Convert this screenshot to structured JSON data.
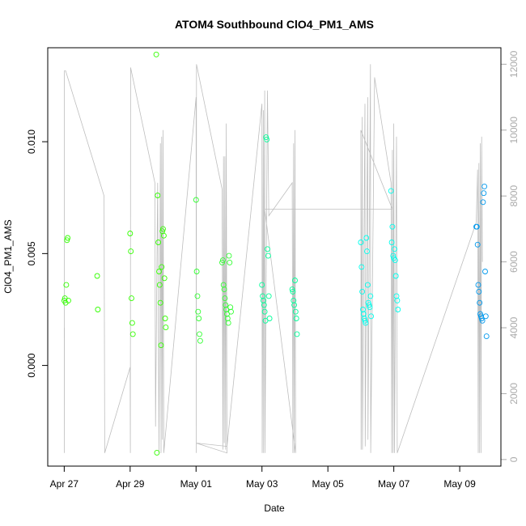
{
  "chart_data": {
    "type": "scatter",
    "title": "ATOM4 Southbound ClO4_PM1_AMS",
    "xlabel": "Date",
    "ylabel": "ClO4_PM1_AMS",
    "xlim": [
      "2018-04-26T12:00",
      "2018-05-10T06:00"
    ],
    "ylim": [
      -0.0045,
      0.0142
    ],
    "y2lim": [
      -200,
      12500
    ],
    "x_ticks": [
      {
        "date": "2018-04-27",
        "label": "Apr 27"
      },
      {
        "date": "2018-04-29",
        "label": "Apr 29"
      },
      {
        "date": "2018-05-01",
        "label": "May 01"
      },
      {
        "date": "2018-05-03",
        "label": "May 03"
      },
      {
        "date": "2018-05-05",
        "label": "May 05"
      },
      {
        "date": "2018-05-07",
        "label": "May 07"
      },
      {
        "date": "2018-05-09",
        "label": "May 09"
      }
    ],
    "y_ticks": [
      {
        "value": 0.0,
        "label": "0.000"
      },
      {
        "value": 0.005,
        "label": "0.005"
      },
      {
        "value": 0.01,
        "label": "0.010"
      }
    ],
    "y2_ticks": [
      {
        "value": 0,
        "label": "0"
      },
      {
        "value": 2000,
        "label": "2000"
      },
      {
        "value": 4000,
        "label": "4000"
      },
      {
        "value": 6000,
        "label": "6000"
      },
      {
        "value": 8000,
        "label": "8000"
      },
      {
        "value": 10000,
        "label": "10000"
      },
      {
        "value": 12000,
        "label": "12000"
      }
    ],
    "grid": false,
    "legend": "none",
    "colors": {
      "altitude_line": "#bebebe",
      "right_axis": "#aaaaaa",
      "point_ramp": [
        "#33ff00",
        "#00ff66",
        "#00ffcc",
        "#00ccff",
        "#0066ff"
      ]
    },
    "altitude_series": {
      "name": "",
      "axis": "right",
      "points": [
        [
          "2018-04-27T00:00",
          4000
        ],
        [
          "2018-04-27T00:05",
          200
        ],
        [
          "2018-04-27T00:10",
          11800
        ],
        [
          "2018-04-27T01:00",
          11800
        ],
        [
          "2018-04-28T05:00",
          8000
        ],
        [
          "2018-04-28T05:30",
          200
        ],
        [
          "2018-04-29T00:00",
          2800
        ],
        [
          "2018-04-29T00:10",
          200
        ],
        [
          "2018-04-29T00:20",
          11900
        ],
        [
          "2018-04-29T18:00",
          8400
        ],
        [
          "2018-04-29T18:30",
          1000
        ],
        [
          "2018-04-29T20:00",
          8400
        ],
        [
          "2018-04-29T21:00",
          200
        ],
        [
          "2018-04-29T22:00",
          9600
        ],
        [
          "2018-04-29T22:30",
          200
        ],
        [
          "2018-04-29T23:00",
          9800
        ],
        [
          "2018-04-29T23:30",
          600
        ],
        [
          "2018-04-30T00:00",
          10000
        ],
        [
          "2018-04-30T00:30",
          200
        ],
        [
          "2018-05-01T00:00",
          11000
        ],
        [
          "2018-05-01T00:10",
          200
        ],
        [
          "2018-05-01T00:20",
          12000
        ],
        [
          "2018-05-01T19:00",
          8200
        ],
        [
          "2018-05-01T19:30",
          300
        ],
        [
          "2018-05-01T20:00",
          9200
        ],
        [
          "2018-05-01T20:30",
          500
        ],
        [
          "2018-05-01T21:00",
          9200
        ],
        [
          "2018-05-01T21:30",
          300
        ],
        [
          "2018-05-01T22:00",
          10200
        ],
        [
          "2018-05-01T22:30",
          200
        ],
        [
          "2018-05-01T00:00",
          500
        ],
        [
          "2018-05-01T22:30",
          400
        ],
        [
          "2018-05-03T00:00",
          10800
        ],
        [
          "2018-05-03T00:10",
          200
        ],
        [
          "2018-05-03T01:00",
          10600
        ],
        [
          "2018-05-03T01:10",
          200
        ],
        [
          "2018-05-03T02:00",
          11200
        ],
        [
          "2018-05-03T02:10",
          200
        ],
        [
          "2018-05-03T04:00",
          11200
        ],
        [
          "2018-05-03T05:00",
          7400
        ],
        [
          "2018-05-03T22:00",
          8400
        ],
        [
          "2018-05-03T22:30",
          200
        ],
        [
          "2018-05-03T23:00",
          9600
        ],
        [
          "2018-05-03T23:30",
          200
        ],
        [
          "2018-05-04T00:00",
          10000
        ],
        [
          "2018-05-04T00:30",
          200
        ],
        [
          "2018-05-03T02:00",
          7600
        ],
        [
          "2018-05-06T23:00",
          7600
        ],
        [
          "2018-05-06T00:00",
          10000
        ],
        [
          "2018-05-06T00:10",
          300
        ],
        [
          "2018-05-06T01:00",
          10400
        ],
        [
          "2018-05-06T01:10",
          300
        ],
        [
          "2018-05-06T03:00",
          10800
        ],
        [
          "2018-05-06T03:10",
          400
        ],
        [
          "2018-05-06T05:00",
          11000
        ],
        [
          "2018-05-06T05:10",
          600
        ],
        [
          "2018-05-06T07:00",
          12000
        ],
        [
          "2018-05-06T07:10",
          200
        ],
        [
          "2018-05-06T10:00",
          11600
        ],
        [
          "2018-05-06T22:00",
          8400
        ],
        [
          "2018-05-06T22:30",
          200
        ],
        [
          "2018-05-06T23:00",
          9400
        ],
        [
          "2018-05-06T23:30",
          200
        ],
        [
          "2018-05-07T00:00",
          10200
        ],
        [
          "2018-05-07T00:30",
          200
        ],
        [
          "2018-05-07T02:00",
          9800
        ],
        [
          "2018-05-07T02:30",
          200
        ],
        [
          "2018-05-09T12:00",
          7200
        ],
        [
          "2018-05-09T13:00",
          8800
        ],
        [
          "2018-05-09T13:30",
          200
        ],
        [
          "2018-05-09T14:00",
          9000
        ],
        [
          "2018-05-09T14:30",
          200
        ],
        [
          "2018-05-09T15:00",
          9600
        ],
        [
          "2018-05-09T15:30",
          200
        ],
        [
          "2018-05-09T16:00",
          9800
        ],
        [
          "2018-05-09T16:30",
          6000
        ]
      ]
    },
    "series": [
      {
        "name": "",
        "color": "#33ff00",
        "points": [
          [
            "2018-04-27T00:00",
            0.0029
          ],
          [
            "2018-04-27T00:30",
            0.003
          ],
          [
            "2018-04-27T01:00",
            0.0028
          ],
          [
            "2018-04-27T01:30",
            0.0036
          ],
          [
            "2018-04-27T02:00",
            0.0056
          ],
          [
            "2018-04-27T02:30",
            0.0057
          ],
          [
            "2018-04-27T03:00",
            0.0029
          ],
          [
            "2018-04-28T00:00",
            0.004
          ],
          [
            "2018-04-28T00:30",
            0.0025
          ],
          [
            "2018-04-29T00:00",
            0.0059
          ],
          [
            "2018-04-29T00:30",
            0.0051
          ],
          [
            "2018-04-29T01:00",
            0.003
          ],
          [
            "2018-04-29T01:30",
            0.0019
          ],
          [
            "2018-04-29T02:00",
            0.0014
          ],
          [
            "2018-04-29T19:00",
            0.0139
          ],
          [
            "2018-04-29T19:30",
            -0.0039
          ],
          [
            "2018-04-29T20:00",
            0.0076
          ],
          [
            "2018-04-29T20:30",
            0.0055
          ],
          [
            "2018-04-29T21:00",
            0.0042
          ],
          [
            "2018-04-29T21:30",
            0.0036
          ],
          [
            "2018-04-29T22:00",
            0.0028
          ],
          [
            "2018-04-29T22:30",
            0.0009
          ],
          [
            "2018-04-29T23:00",
            0.0044
          ],
          [
            "2018-04-29T23:30",
            0.006
          ],
          [
            "2018-04-30T00:00",
            0.0061
          ],
          [
            "2018-04-30T00:30",
            0.0058
          ],
          [
            "2018-04-30T01:00",
            0.0039
          ],
          [
            "2018-04-30T01:30",
            0.0021
          ],
          [
            "2018-04-30T02:00",
            0.0017
          ]
        ]
      },
      {
        "name": "",
        "color": "#33ff33",
        "points": [
          [
            "2018-05-01T00:00",
            0.0074
          ],
          [
            "2018-05-01T00:30",
            0.0042
          ],
          [
            "2018-05-01T01:00",
            0.0031
          ],
          [
            "2018-05-01T01:30",
            0.0024
          ],
          [
            "2018-05-01T02:00",
            0.0021
          ],
          [
            "2018-05-01T02:30",
            0.0014
          ],
          [
            "2018-05-01T03:00",
            0.0011
          ],
          [
            "2018-05-01T19:00",
            0.0046
          ],
          [
            "2018-05-01T19:30",
            0.0047
          ],
          [
            "2018-05-01T20:00",
            0.0036
          ],
          [
            "2018-05-01T20:30",
            0.0034
          ],
          [
            "2018-05-01T21:00",
            0.003
          ],
          [
            "2018-05-01T21:30",
            0.0027
          ],
          [
            "2018-05-01T22:00",
            0.0025
          ],
          [
            "2018-05-01T22:30",
            0.0023
          ],
          [
            "2018-05-01T23:00",
            0.0021
          ],
          [
            "2018-05-01T23:30",
            0.0019
          ],
          [
            "2018-05-02T00:00",
            0.0049
          ],
          [
            "2018-05-02T00:30",
            0.0046
          ],
          [
            "2018-05-02T01:00",
            0.0026
          ],
          [
            "2018-05-02T01:30",
            0.0024
          ]
        ]
      },
      {
        "name": "",
        "color": "#00ff99",
        "points": [
          [
            "2018-05-03T00:00",
            0.0036
          ],
          [
            "2018-05-03T00:30",
            0.0031
          ],
          [
            "2018-05-03T01:00",
            0.0029
          ],
          [
            "2018-05-03T01:30",
            0.0027
          ],
          [
            "2018-05-03T02:00",
            0.0024
          ],
          [
            "2018-05-03T02:30",
            0.002
          ],
          [
            "2018-05-03T03:00",
            0.0102
          ],
          [
            "2018-05-03T03:30",
            0.0101
          ],
          [
            "2018-05-03T04:00",
            0.0052
          ],
          [
            "2018-05-03T04:30",
            0.0049
          ],
          [
            "2018-05-03T05:00",
            0.0031
          ],
          [
            "2018-05-03T05:30",
            0.0021
          ],
          [
            "2018-05-03T22:00",
            0.0034
          ],
          [
            "2018-05-03T22:30",
            0.0033
          ],
          [
            "2018-05-03T23:00",
            0.0029
          ],
          [
            "2018-05-03T23:30",
            0.0027
          ],
          [
            "2018-05-04T00:00",
            0.0038
          ],
          [
            "2018-05-04T00:30",
            0.0024
          ],
          [
            "2018-05-04T01:00",
            0.0021
          ],
          [
            "2018-05-04T01:30",
            0.0014
          ]
        ]
      },
      {
        "name": "",
        "color": "#00ffee",
        "points": [
          [
            "2018-05-06T00:00",
            0.0055
          ],
          [
            "2018-05-06T00:30",
            0.0044
          ],
          [
            "2018-05-06T01:00",
            0.0033
          ],
          [
            "2018-05-06T01:30",
            0.0025
          ],
          [
            "2018-05-06T02:00",
            0.0023
          ],
          [
            "2018-05-06T02:30",
            0.0021
          ],
          [
            "2018-05-06T03:00",
            0.002
          ],
          [
            "2018-05-06T03:30",
            0.0019
          ],
          [
            "2018-05-06T04:00",
            0.0057
          ],
          [
            "2018-05-06T04:30",
            0.0051
          ],
          [
            "2018-05-06T05:00",
            0.0036
          ],
          [
            "2018-05-06T05:30",
            0.0028
          ],
          [
            "2018-05-06T06:00",
            0.0027
          ],
          [
            "2018-05-06T06:30",
            0.0026
          ],
          [
            "2018-05-06T07:00",
            0.0031
          ],
          [
            "2018-05-06T07:30",
            0.0022
          ],
          [
            "2018-05-06T22:00",
            0.0078
          ],
          [
            "2018-05-06T22:30",
            0.0055
          ],
          [
            "2018-05-06T23:00",
            0.0062
          ],
          [
            "2018-05-06T23:30",
            0.0049
          ],
          [
            "2018-05-07T00:00",
            0.0048
          ],
          [
            "2018-05-07T00:30",
            0.0052
          ],
          [
            "2018-05-07T01:00",
            0.0047
          ],
          [
            "2018-05-07T01:30",
            0.004
          ],
          [
            "2018-05-07T02:00",
            0.0031
          ],
          [
            "2018-05-07T02:30",
            0.0029
          ],
          [
            "2018-05-07T03:00",
            0.0025
          ]
        ]
      },
      {
        "name": "",
        "color": "#0099ee",
        "points": [
          [
            "2018-05-09T12:00",
            0.0062
          ],
          [
            "2018-05-09T12:30",
            0.0062
          ],
          [
            "2018-05-09T13:00",
            0.0054
          ],
          [
            "2018-05-09T13:30",
            0.0036
          ],
          [
            "2018-05-09T14:00",
            0.0033
          ],
          [
            "2018-05-09T14:30",
            0.0028
          ],
          [
            "2018-05-09T15:00",
            0.0023
          ],
          [
            "2018-05-09T15:30",
            0.0022
          ],
          [
            "2018-05-09T16:00",
            0.0021
          ],
          [
            "2018-05-09T16:30",
            0.002
          ],
          [
            "2018-05-09T17:00",
            0.0073
          ],
          [
            "2018-05-09T17:30",
            0.0077
          ],
          [
            "2018-05-09T18:00",
            0.008
          ],
          [
            "2018-05-09T18:30",
            0.0042
          ],
          [
            "2018-05-09T19:00",
            0.0022
          ],
          [
            "2018-05-09T19:30",
            0.0013
          ]
        ]
      }
    ]
  }
}
